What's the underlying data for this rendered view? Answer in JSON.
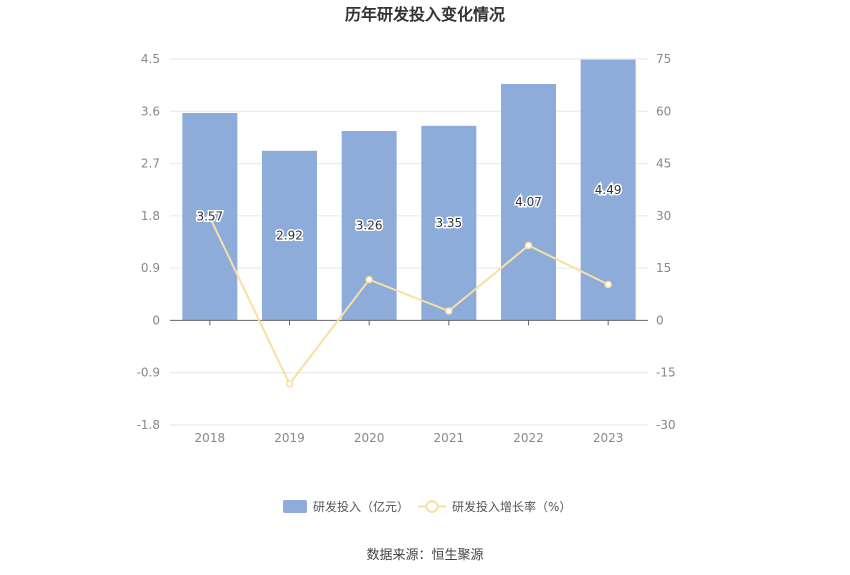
{
  "chart_data": {
    "type": "bar",
    "title": "历年研发投入变化情况",
    "categories": [
      "2018",
      "2019",
      "2020",
      "2021",
      "2022",
      "2023"
    ],
    "series": [
      {
        "name": "研发投入（亿元）",
        "type": "bar",
        "axis": "left",
        "values": [
          3.57,
          2.92,
          3.26,
          3.35,
          4.07,
          4.49
        ],
        "color": "#8eacd9"
      },
      {
        "name": "研发投入增长率（%）",
        "type": "line",
        "axis": "right",
        "values": [
          29.6,
          -18.2,
          11.7,
          2.7,
          21.5,
          10.3
        ],
        "color": "#fadfa3"
      }
    ],
    "y_left": {
      "min": -1.8,
      "max": 4.5,
      "ticks": [
        "4.5",
        "3.6",
        "2.7",
        "1.8",
        "0.9",
        "0",
        "-0.9",
        "-1.8"
      ]
    },
    "y_right": {
      "min": -30,
      "max": 75,
      "ticks": [
        "75",
        "60",
        "45",
        "30",
        "15",
        "0",
        "-15",
        "-30"
      ]
    },
    "grid": true,
    "legend_position": "bottom",
    "source": "数据来源：恒生聚源"
  }
}
